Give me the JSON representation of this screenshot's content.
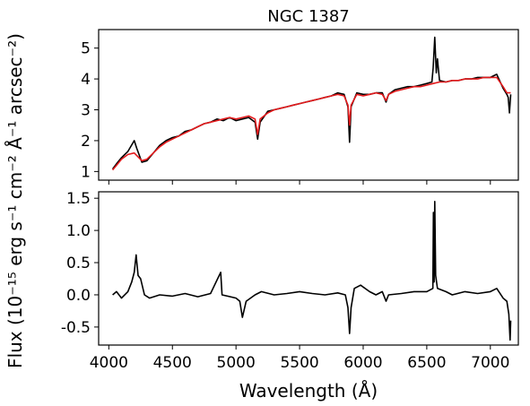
{
  "chart_data": [
    {
      "type": "line",
      "title": "NGC 1387",
      "xlim": [
        3920,
        7220
      ],
      "ylim": [
        0.72,
        5.6
      ],
      "x_ticks": [
        4000,
        4500,
        5000,
        5500,
        6000,
        6500,
        7000
      ],
      "y_ticks": [
        1,
        2,
        3,
        4,
        5
      ],
      "grid": false,
      "series": [
        {
          "color": "#000000",
          "points": [
            [
              4030,
              1.08
            ],
            [
              4060,
              1.25
            ],
            [
              4100,
              1.45
            ],
            [
              4150,
              1.65
            ],
            [
              4200,
              2.0
            ],
            [
              4220,
              1.75
            ],
            [
              4260,
              1.3
            ],
            [
              4300,
              1.35
            ],
            [
              4350,
              1.6
            ],
            [
              4400,
              1.85
            ],
            [
              4450,
              2.0
            ],
            [
              4500,
              2.1
            ],
            [
              4550,
              2.15
            ],
            [
              4600,
              2.3
            ],
            [
              4650,
              2.35
            ],
            [
              4700,
              2.45
            ],
            [
              4750,
              2.55
            ],
            [
              4800,
              2.6
            ],
            [
              4850,
              2.7
            ],
            [
              4900,
              2.65
            ],
            [
              4950,
              2.75
            ],
            [
              5000,
              2.65
            ],
            [
              5050,
              2.7
            ],
            [
              5100,
              2.75
            ],
            [
              5150,
              2.6
            ],
            [
              5170,
              2.05
            ],
            [
              5190,
              2.6
            ],
            [
              5250,
              2.95
            ],
            [
              5300,
              3.0
            ],
            [
              5350,
              3.05
            ],
            [
              5400,
              3.1
            ],
            [
              5450,
              3.15
            ],
            [
              5500,
              3.2
            ],
            [
              5550,
              3.25
            ],
            [
              5600,
              3.3
            ],
            [
              5650,
              3.35
            ],
            [
              5700,
              3.4
            ],
            [
              5750,
              3.45
            ],
            [
              5800,
              3.55
            ],
            [
              5850,
              3.5
            ],
            [
              5880,
              3.1
            ],
            [
              5893,
              1.95
            ],
            [
              5905,
              3.1
            ],
            [
              5950,
              3.55
            ],
            [
              6000,
              3.5
            ],
            [
              6050,
              3.5
            ],
            [
              6100,
              3.55
            ],
            [
              6150,
              3.55
            ],
            [
              6180,
              3.25
            ],
            [
              6200,
              3.5
            ],
            [
              6250,
              3.65
            ],
            [
              6300,
              3.7
            ],
            [
              6350,
              3.75
            ],
            [
              6400,
              3.75
            ],
            [
              6450,
              3.8
            ],
            [
              6500,
              3.85
            ],
            [
              6540,
              3.9
            ],
            [
              6550,
              4.35
            ],
            [
              6563,
              5.35
            ],
            [
              6575,
              4.2
            ],
            [
              6584,
              4.65
            ],
            [
              6600,
              3.95
            ],
            [
              6650,
              3.9
            ],
            [
              6700,
              3.95
            ],
            [
              6750,
              3.95
            ],
            [
              6800,
              4.0
            ],
            [
              6850,
              4.0
            ],
            [
              6900,
              4.05
            ],
            [
              6950,
              4.05
            ],
            [
              7000,
              4.05
            ],
            [
              7050,
              4.15
            ],
            [
              7100,
              3.7
            ],
            [
              7130,
              3.5
            ],
            [
              7140,
              3.4
            ],
            [
              7150,
              2.9
            ],
            [
              7160,
              3.5
            ]
          ]
        },
        {
          "color": "#e41a1c",
          "points": [
            [
              4030,
              1.05
            ],
            [
              4060,
              1.2
            ],
            [
              4100,
              1.4
            ],
            [
              4150,
              1.55
            ],
            [
              4200,
              1.6
            ],
            [
              4260,
              1.35
            ],
            [
              4300,
              1.4
            ],
            [
              4350,
              1.6
            ],
            [
              4400,
              1.8
            ],
            [
              4450,
              1.95
            ],
            [
              4500,
              2.05
            ],
            [
              4550,
              2.15
            ],
            [
              4600,
              2.25
            ],
            [
              4650,
              2.35
            ],
            [
              4700,
              2.45
            ],
            [
              4750,
              2.55
            ],
            [
              4800,
              2.6
            ],
            [
              4850,
              2.65
            ],
            [
              4900,
              2.7
            ],
            [
              4950,
              2.75
            ],
            [
              5000,
              2.7
            ],
            [
              5050,
              2.75
            ],
            [
              5100,
              2.8
            ],
            [
              5150,
              2.7
            ],
            [
              5170,
              2.2
            ],
            [
              5190,
              2.7
            ],
            [
              5250,
              2.9
            ],
            [
              5300,
              3.0
            ],
            [
              5350,
              3.05
            ],
            [
              5400,
              3.1
            ],
            [
              5450,
              3.15
            ],
            [
              5500,
              3.2
            ],
            [
              5550,
              3.25
            ],
            [
              5600,
              3.3
            ],
            [
              5650,
              3.35
            ],
            [
              5700,
              3.4
            ],
            [
              5750,
              3.45
            ],
            [
              5800,
              3.5
            ],
            [
              5850,
              3.45
            ],
            [
              5880,
              3.15
            ],
            [
              5893,
              2.5
            ],
            [
              5905,
              3.15
            ],
            [
              5950,
              3.5
            ],
            [
              6000,
              3.45
            ],
            [
              6050,
              3.5
            ],
            [
              6100,
              3.55
            ],
            [
              6150,
              3.5
            ],
            [
              6180,
              3.3
            ],
            [
              6200,
              3.5
            ],
            [
              6250,
              3.6
            ],
            [
              6300,
              3.65
            ],
            [
              6350,
              3.7
            ],
            [
              6400,
              3.75
            ],
            [
              6450,
              3.75
            ],
            [
              6500,
              3.8
            ],
            [
              6550,
              3.85
            ],
            [
              6600,
              3.9
            ],
            [
              6650,
              3.9
            ],
            [
              6700,
              3.95
            ],
            [
              6750,
              3.95
            ],
            [
              6800,
              4.0
            ],
            [
              6850,
              4.0
            ],
            [
              6900,
              4.0
            ],
            [
              6950,
              4.05
            ],
            [
              7000,
              4.05
            ],
            [
              7050,
              4.05
            ],
            [
              7100,
              3.75
            ],
            [
              7130,
              3.55
            ],
            [
              7160,
              3.55
            ]
          ]
        }
      ]
    },
    {
      "type": "line",
      "xlim": [
        3920,
        7220
      ],
      "ylim": [
        -0.78,
        1.6
      ],
      "x_ticks": [
        4000,
        4500,
        5000,
        5500,
        6000,
        6500,
        7000
      ],
      "y_ticks": [
        -0.5,
        0.0,
        0.5,
        1.0,
        1.5
      ],
      "xlabel": "Wavelength (Å)",
      "grid": false,
      "series": [
        {
          "color": "#000000",
          "points": [
            [
              4030,
              0.0
            ],
            [
              4060,
              0.05
            ],
            [
              4100,
              -0.05
            ],
            [
              4150,
              0.05
            ],
            [
              4180,
              0.2
            ],
            [
              4200,
              0.35
            ],
            [
              4215,
              0.62
            ],
            [
              4230,
              0.3
            ],
            [
              4250,
              0.25
            ],
            [
              4280,
              0.0
            ],
            [
              4320,
              -0.05
            ],
            [
              4400,
              0.0
            ],
            [
              4500,
              -0.02
            ],
            [
              4600,
              0.02
            ],
            [
              4700,
              -0.03
            ],
            [
              4800,
              0.02
            ],
            [
              4880,
              0.35
            ],
            [
              4890,
              0.0
            ],
            [
              5000,
              -0.05
            ],
            [
              5030,
              -0.1
            ],
            [
              5050,
              -0.35
            ],
            [
              5080,
              -0.1
            ],
            [
              5150,
              0.0
            ],
            [
              5200,
              0.05
            ],
            [
              5300,
              0.0
            ],
            [
              5400,
              0.02
            ],
            [
              5500,
              0.05
            ],
            [
              5600,
              0.02
            ],
            [
              5700,
              0.0
            ],
            [
              5800,
              0.03
            ],
            [
              5860,
              0.0
            ],
            [
              5880,
              -0.2
            ],
            [
              5893,
              -0.6
            ],
            [
              5905,
              -0.2
            ],
            [
              5930,
              0.1
            ],
            [
              5980,
              0.15
            ],
            [
              6050,
              0.05
            ],
            [
              6100,
              0.0
            ],
            [
              6150,
              0.05
            ],
            [
              6180,
              -0.1
            ],
            [
              6200,
              0.0
            ],
            [
              6300,
              0.02
            ],
            [
              6400,
              0.05
            ],
            [
              6500,
              0.05
            ],
            [
              6548,
              0.1
            ],
            [
              6552,
              1.28
            ],
            [
              6558,
              0.2
            ],
            [
              6563,
              1.45
            ],
            [
              6570,
              0.3
            ],
            [
              6584,
              0.1
            ],
            [
              6650,
              0.05
            ],
            [
              6700,
              0.0
            ],
            [
              6800,
              0.05
            ],
            [
              6900,
              0.02
            ],
            [
              7000,
              0.05
            ],
            [
              7050,
              0.1
            ],
            [
              7100,
              -0.05
            ],
            [
              7130,
              -0.1
            ],
            [
              7145,
              -0.3
            ],
            [
              7155,
              -0.7
            ],
            [
              7160,
              -0.4
            ]
          ]
        }
      ]
    }
  ],
  "ylabel": "Flux (10⁻¹⁵ erg s⁻¹ cm⁻² Å⁻¹ arcsec⁻²)"
}
